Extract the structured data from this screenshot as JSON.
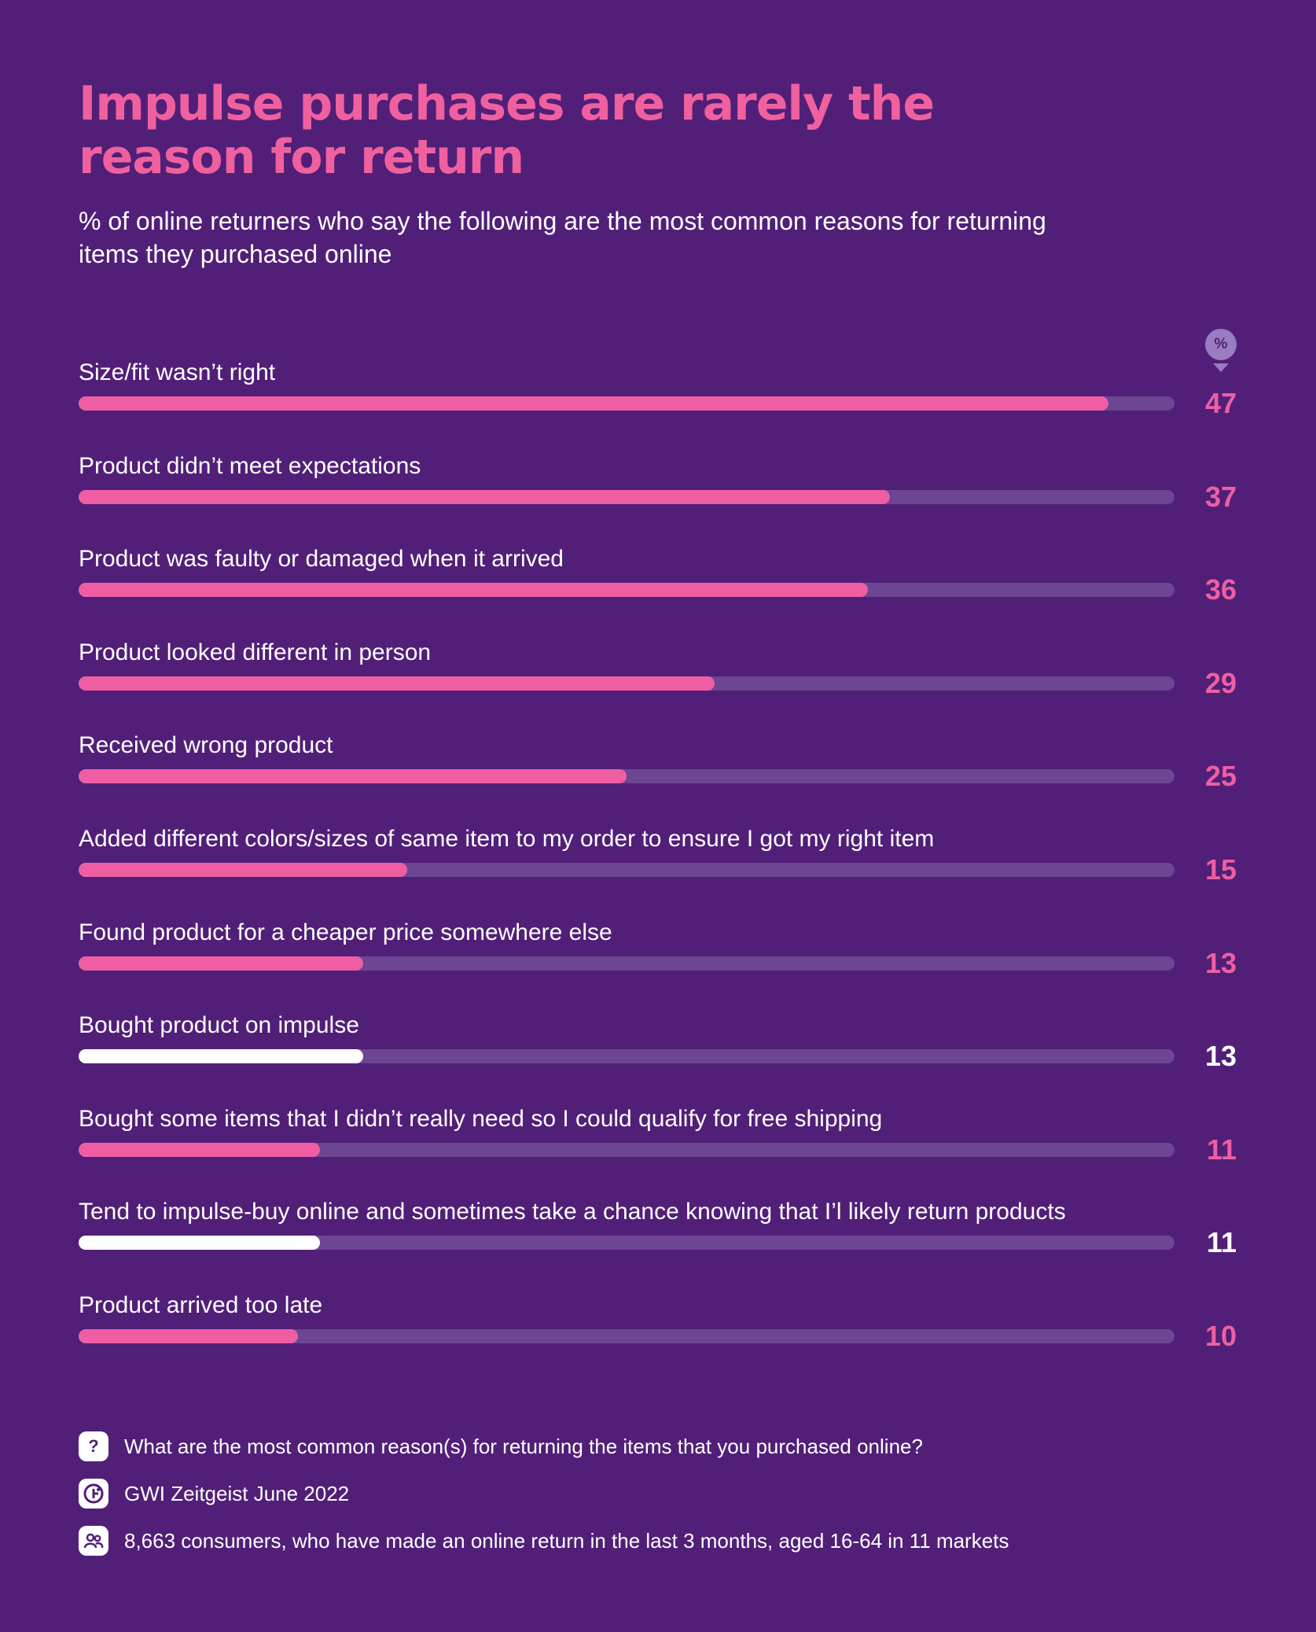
{
  "chart_data": {
    "type": "bar",
    "orientation": "horizontal",
    "title": "Impulse purchases are rarely the reason for return",
    "subtitle": "% of online returners who say the following are the most common reasons for returning items they purchased online",
    "unit_badge": "%",
    "xlim": [
      0,
      50
    ],
    "categories": [
      "Size/fit wasn’t right",
      "Product didn’t meet expectations",
      "Product was faulty or damaged when it arrived",
      "Product looked different in person",
      "Received wrong product",
      "Added different colors/sizes of same item to my order to ensure I got my right item",
      "Found product for a cheaper price somewhere else",
      "Bought product on impulse",
      "Bought some items that I didn’t really need so I could qualify for free shipping",
      "Tend to impulse-buy online and sometimes take a chance knowing that I’l likely return products",
      "Product arrived too late"
    ],
    "values": [
      47,
      37,
      36,
      29,
      25,
      15,
      13,
      13,
      11,
      11,
      10
    ],
    "highlighted": [
      false,
      false,
      false,
      false,
      false,
      false,
      false,
      true,
      false,
      true,
      false
    ],
    "colors": {
      "background": "#511f78",
      "bar": "#ef5ea3",
      "bar_highlight": "#ffffff",
      "track": "#6c4593",
      "title": "#f0609f"
    }
  },
  "footer": {
    "question": "What are the most common reason(s) for returning the items that you purchased online?",
    "question_icon": "?",
    "source": "GWI Zeitgeist June 2022",
    "source_icon": "gwi-logo-icon",
    "sample": "8,663 consumers, who have made an online return in the last 3 months, aged 16-64 in 11 markets",
    "sample_icon": "people-icon"
  }
}
